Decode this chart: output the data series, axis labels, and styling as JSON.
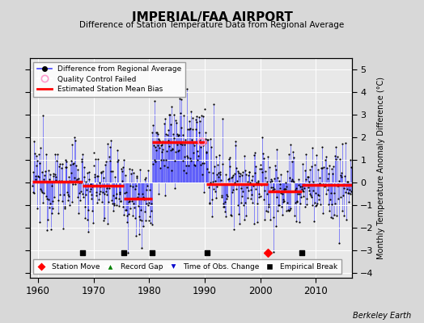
{
  "title": "IMPERIAL/FAA AIRPORT",
  "subtitle": "Difference of Station Temperature Data from Regional Average",
  "ylabel": "Monthly Temperature Anomaly Difference (°C)",
  "xlabel_note": "Berkeley Earth",
  "xlim": [
    1958.5,
    2016.5
  ],
  "ylim": [
    -4.2,
    5.5
  ],
  "yticks": [
    -4,
    -3,
    -2,
    -1,
    0,
    1,
    2,
    3,
    4,
    5
  ],
  "xticks": [
    1960,
    1970,
    1980,
    1990,
    2000,
    2010
  ],
  "background_color": "#d8d8d8",
  "plot_bg_color": "#e8e8e8",
  "grid_color": "#ffffff",
  "line_color": "#4444ff",
  "dot_color": "#000000",
  "bias_color": "#ff0000",
  "seed": 12345,
  "segments": [
    {
      "start": 1959.0,
      "end": 1968.0,
      "bias": 0.05
    },
    {
      "start": 1968.0,
      "end": 1975.5,
      "bias": -0.15
    },
    {
      "start": 1975.5,
      "end": 1980.5,
      "bias": -0.7
    },
    {
      "start": 1980.5,
      "end": 1990.0,
      "bias": 1.8
    },
    {
      "start": 1990.0,
      "end": 1990.5,
      "bias": 1.8
    },
    {
      "start": 1990.5,
      "end": 2001.3,
      "bias": -0.05
    },
    {
      "start": 2001.3,
      "end": 2007.5,
      "bias": -0.4
    },
    {
      "start": 2007.5,
      "end": 2016.5,
      "bias": -0.1
    }
  ],
  "bias_display": [
    {
      "start": 1959.0,
      "end": 1968.0,
      "bias": 0.05
    },
    {
      "start": 1968.0,
      "end": 1975.5,
      "bias": -0.15
    },
    {
      "start": 1975.5,
      "end": 1980.5,
      "bias": -0.7
    },
    {
      "start": 1980.5,
      "end": 1990.3,
      "bias": 1.8
    },
    {
      "start": 1990.3,
      "end": 2001.3,
      "bias": -0.05
    },
    {
      "start": 2001.3,
      "end": 2007.5,
      "bias": -0.4
    },
    {
      "start": 2007.5,
      "end": 2016.5,
      "bias": -0.1
    }
  ],
  "station_moves": [
    2001.3
  ],
  "record_gaps": [],
  "obs_changes": [],
  "empirical_breaks": [
    1968.0,
    1975.5,
    1980.5,
    1990.5,
    2007.5
  ],
  "marker_y": -3.1,
  "qc_failed": [
    1989.5
  ]
}
